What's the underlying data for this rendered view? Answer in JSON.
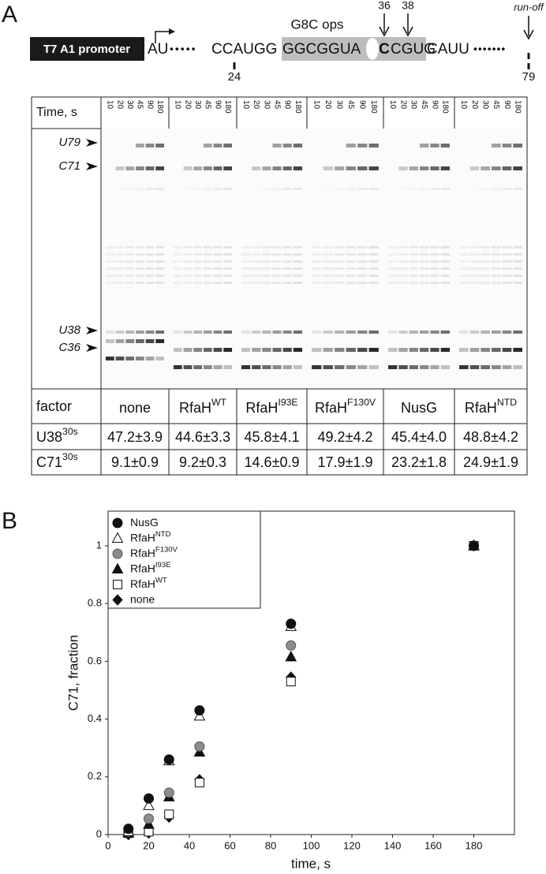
{
  "panel_labels": [
    "A",
    "B"
  ],
  "diagram": {
    "promoter": "T7 A1 promoter",
    "start": "AU",
    "dots_left": "•••••",
    "seq_left": "CCAUGG",
    "ops_left": "GGCGGUA",
    "ops_bold": "C",
    "ops_right": "CGUG",
    "seq_right": "CAUU",
    "dots_right": "•••••••",
    "ops_label": "G8C ops",
    "pos_24": "24",
    "pos_36": "36",
    "pos_38": "38",
    "pos_79": "79",
    "run_off": "run-off"
  },
  "gel": {
    "time_label": "Time, s",
    "time_points": [
      "10",
      "20",
      "30",
      "45",
      "90",
      "180"
    ],
    "bands": [
      "U79",
      "C71",
      "U38",
      "C36"
    ]
  },
  "table": {
    "header": "factor",
    "factors": [
      {
        "base": "none"
      },
      {
        "base": "RfaH",
        "sup": "WT"
      },
      {
        "base": "RfaH",
        "sup": "I93E"
      },
      {
        "base": "RfaH",
        "sup": "F130V"
      },
      {
        "base": "NusG"
      },
      {
        "base": "RfaH",
        "sup": "NTD"
      }
    ],
    "rows": [
      {
        "label": "U38",
        "sup": "30s",
        "values": [
          "47.2±3.9",
          "44.6±3.3",
          "45.8±4.1",
          "49.2±4.2",
          "45.4±4.0",
          "48.8±4.2"
        ]
      },
      {
        "label": "C71",
        "sup": "30s",
        "values": [
          "9.1±0.9",
          "9.2±0.3",
          "14.6±0.9",
          "17.9±1.9",
          "23.2±1.8",
          "24.9±1.9"
        ]
      }
    ]
  },
  "chart_data": {
    "type": "scatter",
    "xlabel": "time, s",
    "ylabel": "C71, fraction",
    "x": [
      10,
      20,
      30,
      45,
      90,
      180
    ],
    "xlim": [
      0,
      200
    ],
    "xticks": [
      0,
      20,
      40,
      60,
      80,
      100,
      120,
      140,
      160,
      180
    ],
    "ylim": [
      0,
      1.12
    ],
    "yticks": [
      0,
      0.2,
      0.4,
      0.6,
      0.8,
      1
    ],
    "legend": "top-left",
    "series": [
      {
        "name": "NusG",
        "marker": "circle",
        "color": "#111111",
        "stroke": "#111111",
        "values": [
          0.02,
          0.125,
          0.26,
          0.43,
          0.73,
          1.0
        ]
      },
      {
        "name": "RfaH",
        "sup": "NTD",
        "marker": "triangle",
        "color": "#ffffff",
        "stroke": "#111111",
        "values": [
          0.01,
          0.1,
          0.255,
          0.41,
          0.72,
          1.0
        ]
      },
      {
        "name": "RfaH",
        "sup": "F130V",
        "marker": "circle",
        "color": "#8c8c8c",
        "stroke": "#555555",
        "values": [
          0.01,
          0.055,
          0.145,
          0.305,
          0.655,
          1.0
        ]
      },
      {
        "name": "RfaH",
        "sup": "I93E",
        "marker": "triangle",
        "color": "#111111",
        "stroke": "#111111",
        "values": [
          0.005,
          0.035,
          0.13,
          0.285,
          0.615,
          1.0
        ]
      },
      {
        "name": "RfaH",
        "sup": "WT",
        "marker": "square",
        "color": "#ffffff",
        "stroke": "#111111",
        "values": [
          0.005,
          0.01,
          0.07,
          0.18,
          0.53,
          1.0
        ]
      },
      {
        "name": "none",
        "marker": "diamond",
        "color": "#111111",
        "stroke": "#111111",
        "values": [
          0.0,
          0.005,
          0.06,
          0.19,
          0.545,
          1.0
        ]
      }
    ]
  }
}
